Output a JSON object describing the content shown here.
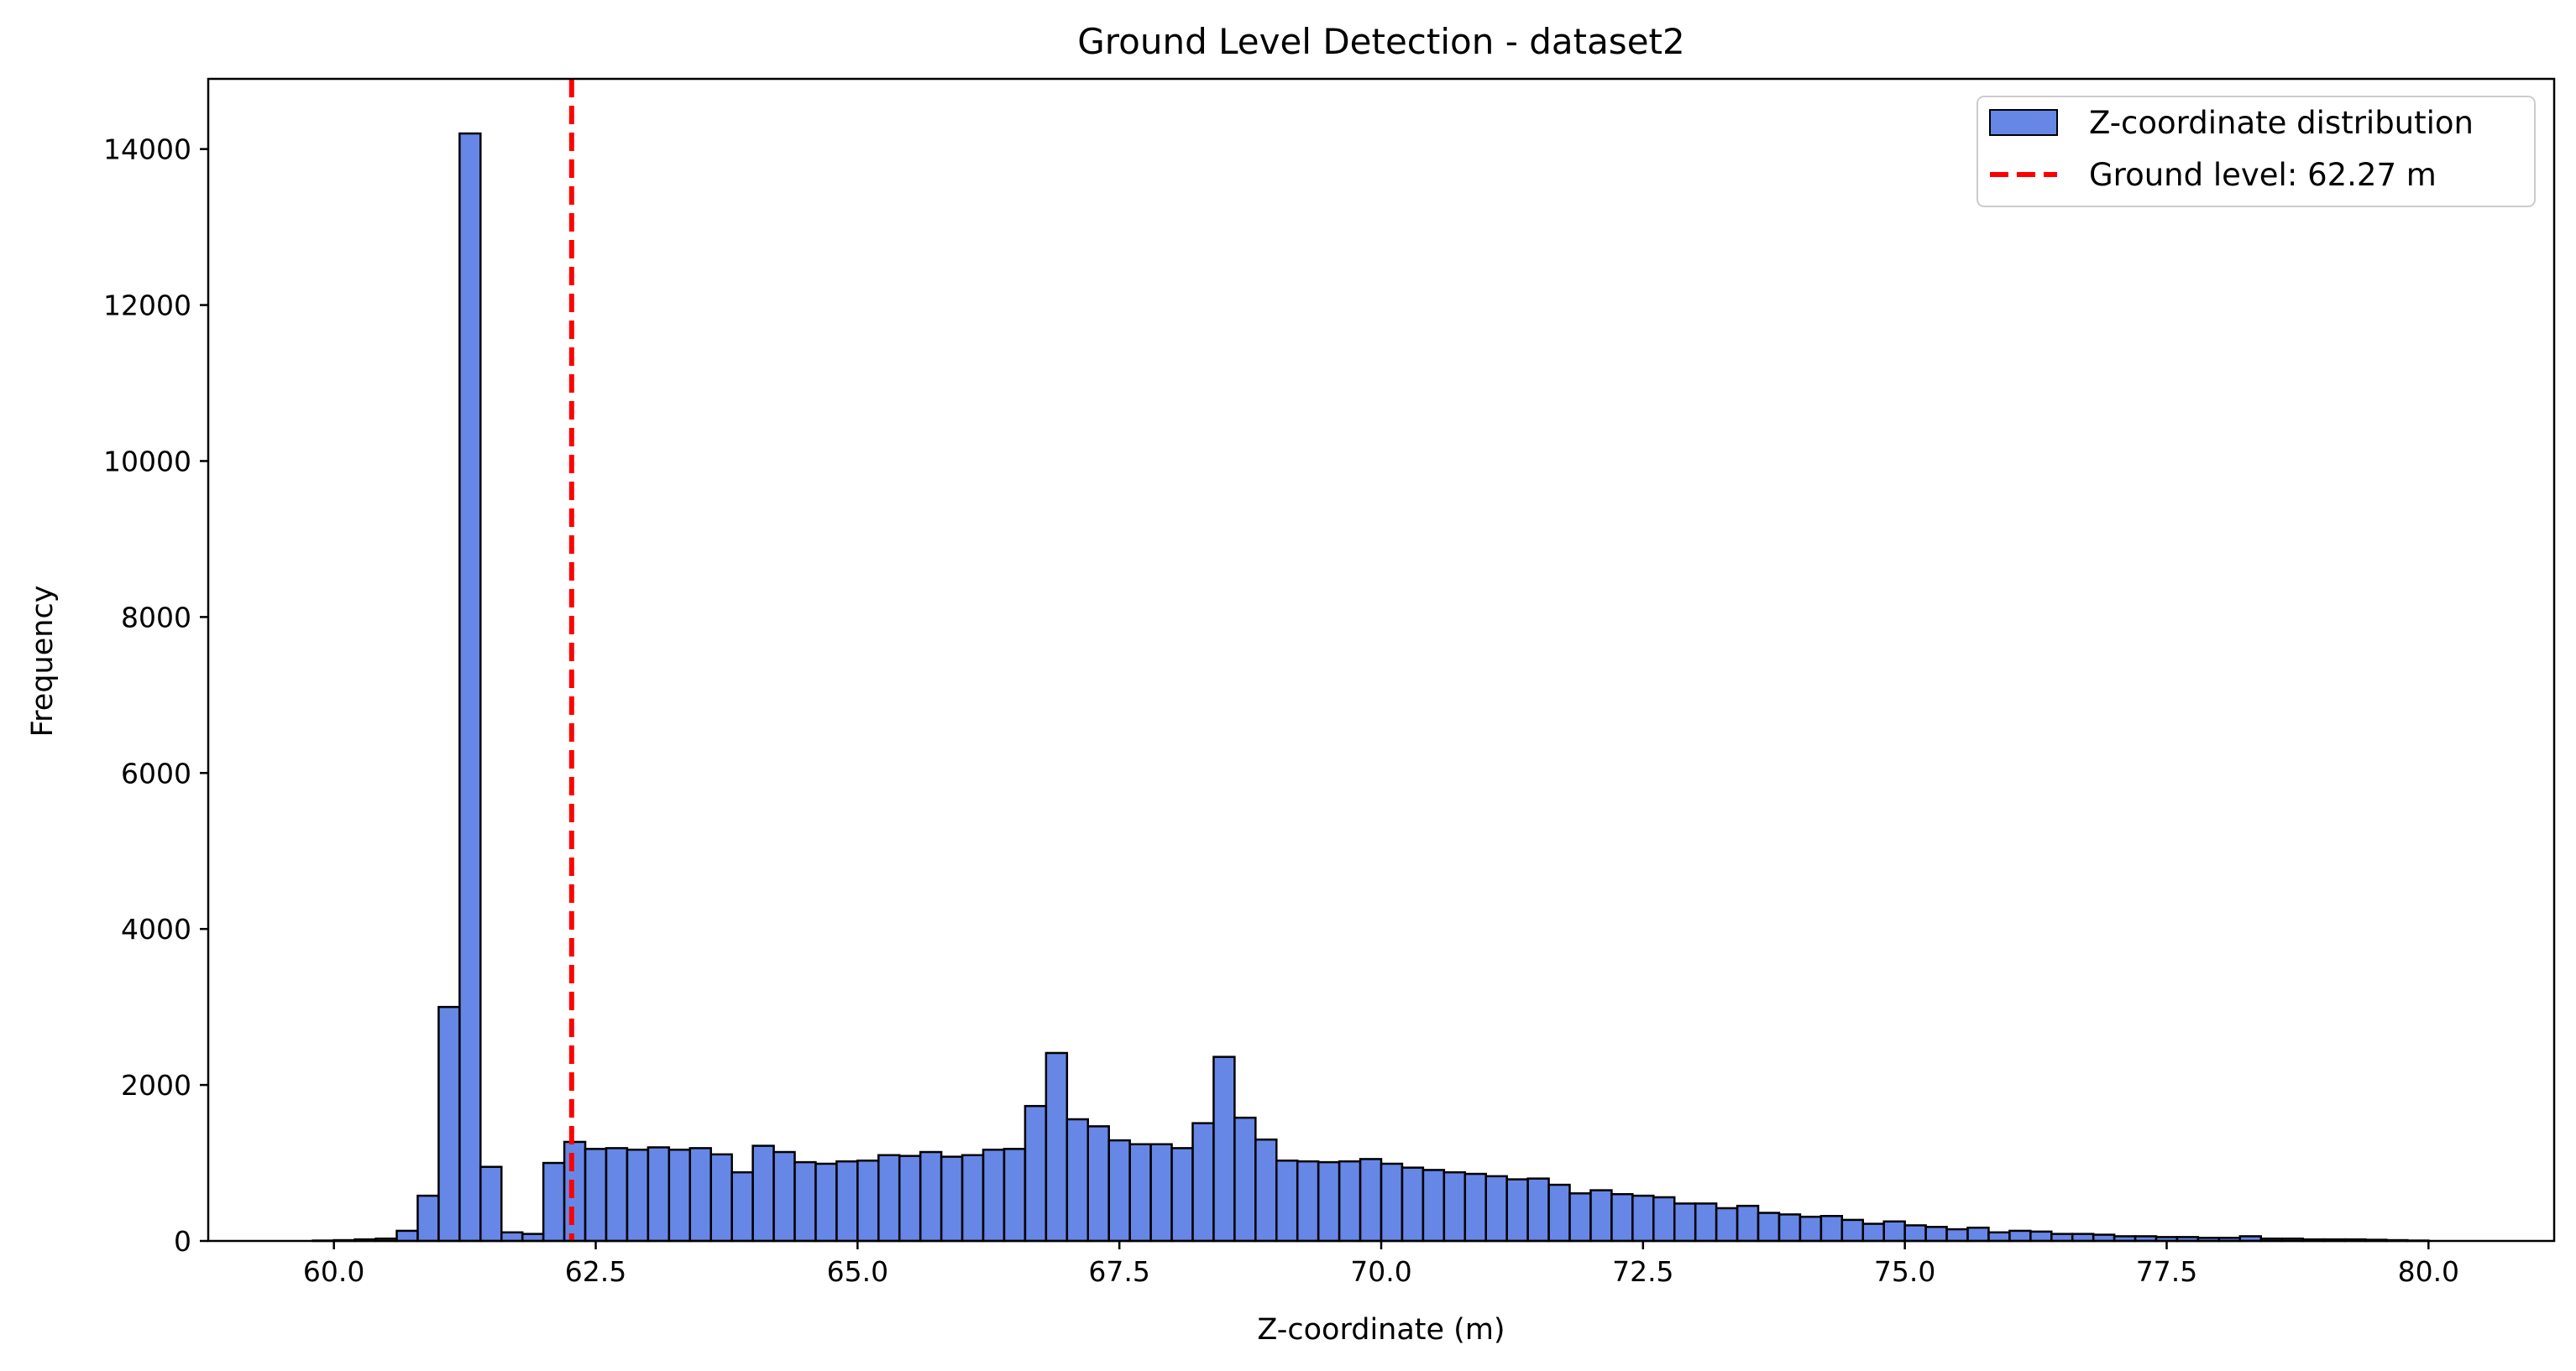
{
  "chart_data": {
    "type": "bar",
    "title": "Ground Level Detection - dataset2",
    "xlabel": "Z-coordinate (m)",
    "ylabel": "Frequency",
    "xlim": [
      58.8,
      81.2
    ],
    "ylim": [
      0,
      14900
    ],
    "xticks": [
      60.0,
      62.5,
      65.0,
      67.5,
      70.0,
      72.5,
      75.0,
      77.5,
      80.0
    ],
    "xtick_labels": [
      "60.0",
      "62.5",
      "65.0",
      "67.5",
      "70.0",
      "72.5",
      "75.0",
      "77.5",
      "80.0"
    ],
    "yticks": [
      0,
      2000,
      4000,
      6000,
      8000,
      10000,
      12000,
      14000
    ],
    "ytick_labels": [
      "0",
      "2000",
      "4000",
      "6000",
      "8000",
      "10000",
      "12000",
      "14000"
    ],
    "grid": false,
    "legend_position": "top-right",
    "bin_start": 59.8,
    "bin_width": 0.2,
    "series": [
      {
        "name": "Z-coordinate distribution",
        "color": "#4169e1",
        "values": [
          5,
          10,
          20,
          30,
          130,
          580,
          3000,
          14200,
          950,
          110,
          90,
          1000,
          1270,
          1180,
          1190,
          1170,
          1200,
          1170,
          1190,
          1110,
          880,
          1220,
          1140,
          1010,
          990,
          1020,
          1030,
          1100,
          1090,
          1140,
          1080,
          1100,
          1170,
          1180,
          1730,
          2410,
          1560,
          1470,
          1290,
          1240,
          1240,
          1190,
          1510,
          2360,
          1580,
          1300,
          1030,
          1020,
          1010,
          1020,
          1050,
          990,
          940,
          910,
          880,
          860,
          830,
          790,
          800,
          720,
          610,
          650,
          600,
          580,
          560,
          480,
          480,
          420,
          450,
          360,
          340,
          310,
          320,
          270,
          220,
          250,
          200,
          180,
          150,
          170,
          110,
          130,
          120,
          90,
          90,
          80,
          60,
          60,
          50,
          50,
          40,
          40,
          60,
          30,
          30,
          20,
          20,
          20,
          15,
          10,
          5
        ]
      }
    ],
    "annotation": {
      "label": "Ground level: 62.27 m",
      "x": 62.27,
      "color": "#ff0000",
      "style": "dashed"
    }
  }
}
